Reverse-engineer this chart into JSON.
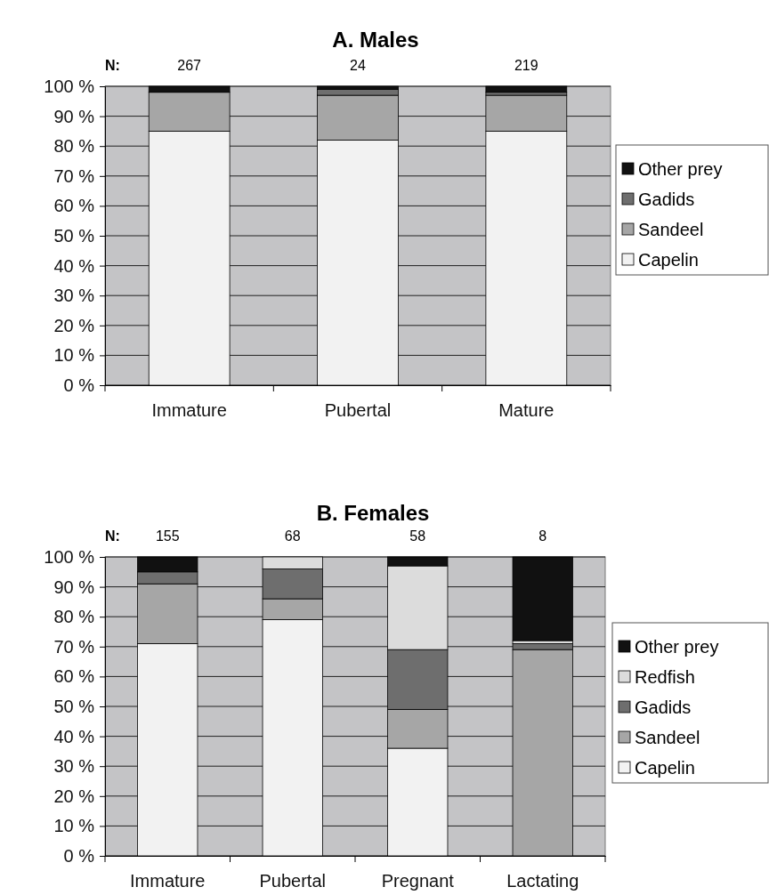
{
  "chart_data": [
    {
      "type": "bar",
      "title": "A. Males",
      "categories": [
        "Immature",
        "Pubertal",
        "Mature"
      ],
      "stacked": true,
      "ylim": [
        0,
        100
      ],
      "yticks": [
        {
          "value": 0,
          "label": "0 %"
        },
        {
          "value": 10,
          "label": "10 %"
        },
        {
          "value": 20,
          "label": "20 %"
        },
        {
          "value": 30,
          "label": "30 %"
        },
        {
          "value": 40,
          "label": "40 %"
        },
        {
          "value": 50,
          "label": "50 %"
        },
        {
          "value": 60,
          "label": "60 %"
        },
        {
          "value": 70,
          "label": "70 %"
        },
        {
          "value": 80,
          "label": "80 %"
        },
        {
          "value": 90,
          "label": "90 %"
        },
        {
          "value": 100,
          "label": "100 %"
        }
      ],
      "grid": "y",
      "legend": "right",
      "annotations": [
        "N:",
        "267",
        "24",
        "219"
      ],
      "series": [
        {
          "name": "Capelin",
          "color": "#f2f2f2",
          "values": [
            85,
            82,
            85
          ]
        },
        {
          "name": "Sandeel",
          "color": "#a6a6a6",
          "values": [
            13,
            15,
            12
          ]
        },
        {
          "name": "Gadids",
          "color": "#6e6e6e",
          "values": [
            0,
            2,
            1
          ]
        },
        {
          "name": "Other prey",
          "color": "#111111",
          "values": [
            2,
            1,
            2
          ]
        }
      ]
    },
    {
      "type": "bar",
      "title": "B. Females",
      "categories": [
        "Immature",
        "Pubertal",
        "Pregnant",
        "Lactating"
      ],
      "stacked": true,
      "ylim": [
        0,
        100
      ],
      "yticks": [
        {
          "value": 0,
          "label": "0 %"
        },
        {
          "value": 10,
          "label": "10 %"
        },
        {
          "value": 20,
          "label": "20 %"
        },
        {
          "value": 30,
          "label": "30 %"
        },
        {
          "value": 40,
          "label": "40 %"
        },
        {
          "value": 50,
          "label": "50 %"
        },
        {
          "value": 60,
          "label": "60 %"
        },
        {
          "value": 70,
          "label": "70 %"
        },
        {
          "value": 80,
          "label": "80 %"
        },
        {
          "value": 90,
          "label": "90 %"
        },
        {
          "value": 100,
          "label": "100 %"
        }
      ],
      "grid": "y",
      "legend": "right",
      "annotations": [
        "N:",
        "155",
        "68",
        "58",
        "8"
      ],
      "series": [
        {
          "name": "Capelin",
          "color": "#f2f2f2",
          "values": [
            71,
            79,
            36,
            0
          ]
        },
        {
          "name": "Sandeel",
          "color": "#a6a6a6",
          "values": [
            20,
            7,
            13,
            69
          ]
        },
        {
          "name": "Gadids",
          "color": "#6e6e6e",
          "values": [
            4,
            10,
            20,
            2
          ]
        },
        {
          "name": "Redfish",
          "color": "#dcdcdc",
          "values": [
            0,
            4,
            28,
            1
          ]
        },
        {
          "name": "Other prey",
          "color": "#111111",
          "values": [
            5,
            0,
            3,
            28
          ]
        }
      ]
    }
  ]
}
